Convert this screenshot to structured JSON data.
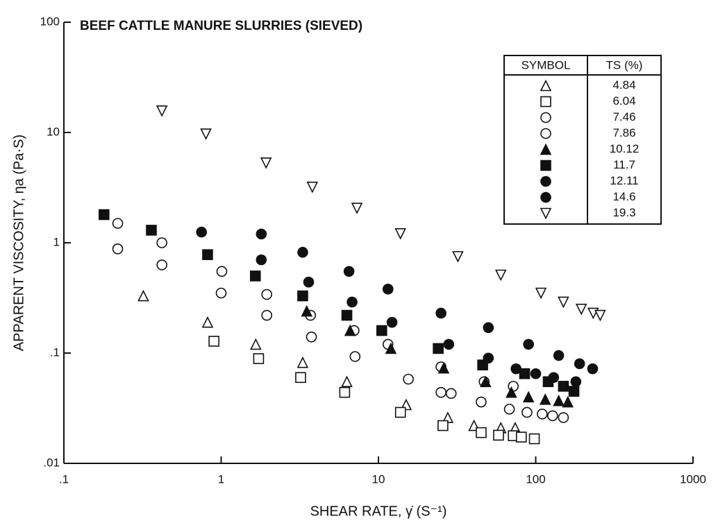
{
  "chart_data": {
    "type": "scatter",
    "title": "BEEF CATTLE MANURE SLURRIES (SIEVED)",
    "x_label": "SHEAR RATE, γ̇ (S⁻¹)",
    "y_label": "APPARENT VISCOSITY, ηa (Pa·S)",
    "log_x": true,
    "log_y": true,
    "xlim": [
      0.1,
      1000
    ],
    "ylim": [
      0.01,
      100
    ],
    "xticks": [
      {
        "value": 0.1,
        "label": ".1"
      },
      1,
      10,
      100,
      1000
    ],
    "yticks": [
      {
        "value": 0.01,
        "label": ".01"
      },
      {
        "value": 0.1,
        "label": ".1"
      },
      1,
      10,
      100
    ],
    "legend_header": [
      "SYMBOL",
      "TS (%)"
    ],
    "legend_position": "upper right",
    "series": [
      {
        "name": "4.84",
        "marker": "triangle-open",
        "color": "#111",
        "x": [
          0.32,
          0.82,
          1.66,
          3.3,
          6.3,
          15,
          27.6,
          40.5,
          60,
          74
        ],
        "values": [
          0.33,
          0.19,
          0.12,
          0.082,
          0.055,
          0.034,
          0.026,
          0.022,
          0.021,
          0.021
        ]
      },
      {
        "name": "6.04",
        "marker": "square-open",
        "color": "#111",
        "x": [
          0.9,
          1.73,
          3.2,
          6.1,
          13.8,
          25.7,
          45,
          58,
          72,
          81,
          98
        ],
        "values": [
          0.128,
          0.089,
          0.06,
          0.044,
          0.029,
          0.022,
          0.019,
          0.018,
          0.0178,
          0.0173,
          0.0167
        ]
      },
      {
        "name": "7.46",
        "marker": "circle-open",
        "color": "#111",
        "x": [
          0.22,
          0.42,
          1.01,
          1.95,
          3.7,
          7.0,
          11.5,
          25,
          47,
          72
        ],
        "values": [
          1.5,
          1.0,
          0.55,
          0.34,
          0.22,
          0.16,
          0.12,
          0.075,
          0.055,
          0.05
        ]
      },
      {
        "name": "7.86",
        "marker": "circle-open",
        "color": "#111",
        "x": [
          0.22,
          0.42,
          1.0,
          1.95,
          3.75,
          7.1,
          15.5,
          25,
          29,
          45,
          68,
          88,
          110,
          128,
          150
        ],
        "values": [
          0.88,
          0.63,
          0.35,
          0.22,
          0.14,
          0.093,
          0.058,
          0.044,
          0.043,
          0.036,
          0.031,
          0.029,
          0.028,
          0.027,
          0.026
        ]
      },
      {
        "name": "10.12",
        "marker": "triangle-filled",
        "color": "#111",
        "x": [
          3.5,
          6.6,
          12,
          26,
          48,
          70,
          90,
          115,
          140,
          160
        ],
        "values": [
          0.24,
          0.16,
          0.11,
          0.073,
          0.055,
          0.044,
          0.04,
          0.038,
          0.037,
          0.036
        ]
      },
      {
        "name": "11.7",
        "marker": "square-filled",
        "color": "#111",
        "x": [
          0.18,
          0.36,
          0.82,
          1.65,
          3.3,
          6.3,
          10.5,
          24,
          46,
          85,
          120,
          150,
          175
        ],
        "values": [
          1.8,
          1.3,
          0.78,
          0.5,
          0.33,
          0.22,
          0.16,
          0.11,
          0.078,
          0.065,
          0.055,
          0.05,
          0.045
        ]
      },
      {
        "name": "12.11",
        "marker": "circle-filled",
        "color": "#111",
        "x": [
          0.75,
          1.8,
          3.6,
          6.8,
          12.2,
          28,
          50,
          75,
          100,
          130,
          180
        ],
        "values": [
          1.25,
          0.7,
          0.44,
          0.29,
          0.19,
          0.12,
          0.09,
          0.072,
          0.065,
          0.06,
          0.055
        ]
      },
      {
        "name": "14.6",
        "marker": "circle-filled",
        "color": "#111",
        "x": [
          1.8,
          3.3,
          6.5,
          11.5,
          25,
          50,
          90,
          140,
          190,
          230
        ],
        "values": [
          1.2,
          0.82,
          0.55,
          0.38,
          0.23,
          0.17,
          0.12,
          0.095,
          0.08,
          0.072
        ]
      },
      {
        "name": "19.3",
        "marker": "triangle-down-open",
        "color": "#111",
        "x": [
          0.42,
          0.8,
          1.93,
          3.8,
          7.3,
          13.8,
          32,
          60,
          108,
          150,
          195,
          232,
          257
        ],
        "values": [
          15.7,
          9.7,
          5.3,
          3.2,
          2.06,
          1.21,
          0.75,
          0.51,
          0.35,
          0.29,
          0.25,
          0.23,
          0.22
        ]
      }
    ]
  }
}
